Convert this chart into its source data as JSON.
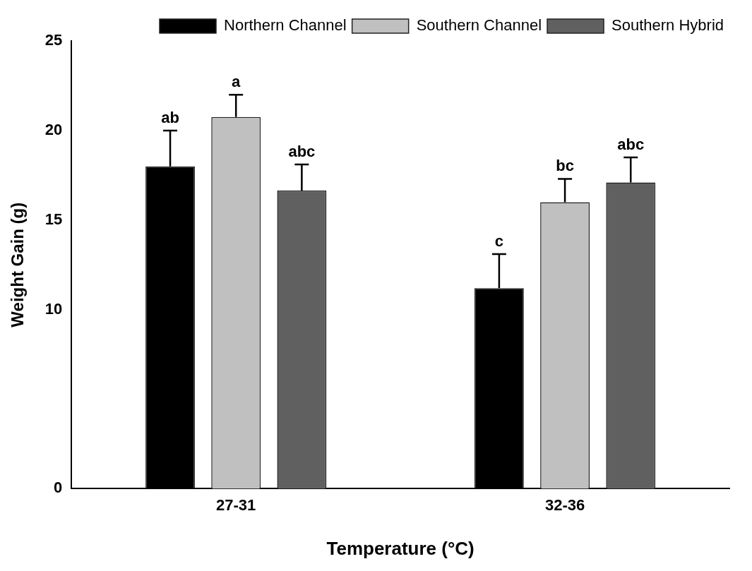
{
  "chart_data": {
    "type": "bar",
    "xlabel": "Temperature (°C)",
    "ylabel": "Weight Gain (g)",
    "categories": [
      "27-31",
      "32-36"
    ],
    "series": [
      {
        "name": "Northern Channel",
        "color": "#000000",
        "values": [
          18.0,
          11.2
        ],
        "errors": [
          2.0,
          1.9
        ],
        "value_labels": [
          "ab",
          "c"
        ]
      },
      {
        "name": "Southern Channel",
        "color": "#c0c0c0",
        "values": [
          20.75,
          16.0
        ],
        "errors": [
          1.25,
          1.3
        ],
        "value_labels": [
          "a",
          "bc"
        ]
      },
      {
        "name": "Southern Hybrid",
        "color": "#606060",
        "values": [
          16.65,
          17.1
        ],
        "errors": [
          1.45,
          1.4
        ],
        "value_labels": [
          "abc",
          "abc"
        ]
      }
    ],
    "ylim": [
      0,
      25
    ],
    "yticks": [
      0,
      10,
      15,
      20,
      25
    ],
    "grid": false,
    "legend": "top right"
  }
}
